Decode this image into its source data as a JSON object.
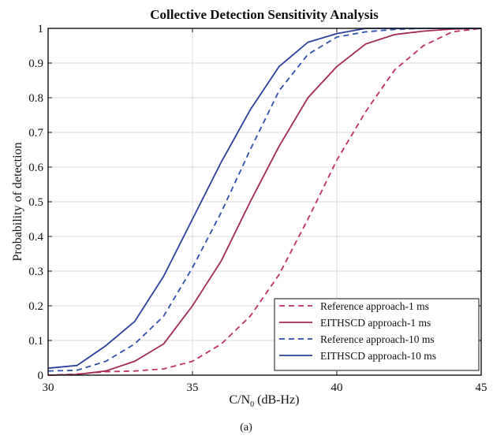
{
  "figure_caption": "(a)",
  "chart_data": {
    "type": "line",
    "title": "Collective Detection Sensitivity Analysis",
    "xlabel_main": "C/N",
    "xlabel_sub": "0",
    "xlabel_unit": " (dB-Hz)",
    "ylabel": "Probability of detection",
    "xlim": [
      30,
      45
    ],
    "ylim": [
      0,
      1
    ],
    "x_ticks": [
      "30",
      "35",
      "40",
      "45"
    ],
    "y_ticks": [
      "0",
      "0.1",
      "0.2",
      "0.3",
      "0.4",
      "0.5",
      "0.6",
      "0.7",
      "0.8",
      "0.9",
      "1"
    ],
    "grid": true,
    "legend_position": "bottom-right",
    "x": [
      30,
      31,
      32,
      33,
      34,
      35,
      36,
      37,
      38,
      39,
      40,
      41,
      42,
      43,
      44,
      45
    ],
    "series": [
      {
        "name": "Reference approach-1 ms",
        "color": "#c0305a",
        "dash": true,
        "values": [
          0.0,
          0.003,
          0.01,
          0.012,
          0.018,
          0.04,
          0.09,
          0.17,
          0.29,
          0.45,
          0.62,
          0.76,
          0.88,
          0.95,
          0.99,
          1.0
        ]
      },
      {
        "name": "EITHSCD approach-1 ms",
        "color": "#a3284c",
        "dash": false,
        "values": [
          0.0,
          0.002,
          0.012,
          0.04,
          0.09,
          0.2,
          0.33,
          0.5,
          0.66,
          0.8,
          0.89,
          0.955,
          0.982,
          0.992,
          0.998,
          1.0
        ]
      },
      {
        "name": "Reference approach-10 ms",
        "color": "#2f4fae",
        "dash": true,
        "values": [
          0.012,
          0.014,
          0.04,
          0.09,
          0.17,
          0.31,
          0.47,
          0.65,
          0.82,
          0.925,
          0.975,
          0.99,
          0.997,
          1.0,
          1.0,
          1.0
        ]
      },
      {
        "name": "EITHSCD approach-10 ms",
        "color": "#2b3f9c",
        "dash": false,
        "values": [
          0.02,
          0.028,
          0.085,
          0.155,
          0.285,
          0.45,
          0.615,
          0.765,
          0.89,
          0.96,
          0.985,
          1.0,
          1.0,
          1.0,
          1.0,
          1.0
        ]
      }
    ]
  }
}
